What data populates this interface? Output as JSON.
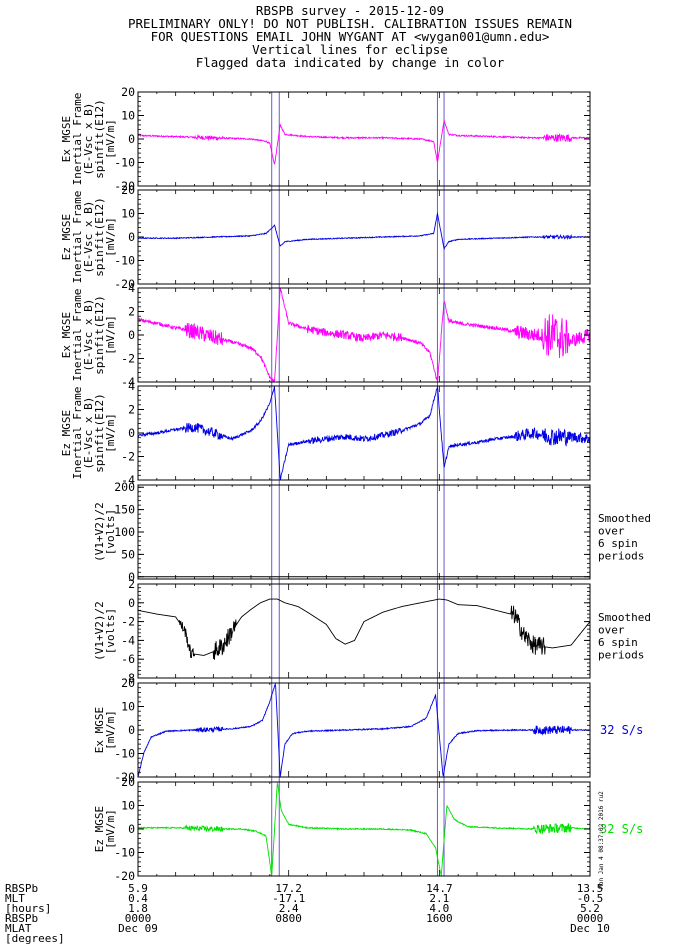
{
  "header": {
    "line1": "RBSPB survey - 2015-12-09",
    "line2": "PRELIMINARY ONLY! DO NOT PUBLISH. CALIBRATION ISSUES REMAIN",
    "line3": "FOR QUESTIONS EMAIL JOHN WYGANT AT <wygan001@umn.edu>",
    "line4": "Vertical lines for eclipse",
    "line5": "Flagged data indicated by change in color"
  },
  "side_stamp": "Mon Jan 4 08:37:02 2016 ru2",
  "colors": {
    "magenta": "#ff00ff",
    "blue": "#0000e6",
    "green": "#00e000",
    "black": "#000000",
    "eclipse": "#6a5acd"
  },
  "chart_data": {
    "type": "line",
    "x_unit": "hours UT",
    "xlim": [
      0,
      24
    ],
    "eclipse_intervals": [
      [
        7.1,
        7.5
      ],
      [
        15.9,
        16.25
      ]
    ],
    "panels": [
      {
        "ylabel": [
          "Ex MGSE",
          "Inertial Frame",
          "(E-Vsc x B)",
          "spinfit(E12)",
          "[mV/m]"
        ],
        "ylim": [
          -20,
          20
        ],
        "yticks": [
          "20",
          "10",
          "0",
          "-10",
          "-20"
        ],
        "ytick_values": [
          20,
          10,
          0,
          -10,
          -20
        ],
        "color": "magenta",
        "kind": "ex_wide",
        "series": [
          {
            "x": [
              0,
              2,
              4,
              6,
              6.8,
              7.0,
              7.25,
              7.55,
              7.8,
              9,
              11,
              13,
              15,
              15.7,
              15.9,
              16.25,
              16.5,
              17,
              19,
              21,
              22.5,
              24
            ],
            "y": [
              1.5,
              1,
              0.5,
              0,
              -1,
              -2,
              -11,
              6,
              2,
              1,
              0.5,
              0.5,
              0,
              -1,
              -10,
              8,
              2,
              1.5,
              1,
              0.5,
              0.5,
              0.5
            ]
          }
        ]
      },
      {
        "ylabel": [
          "Ez MGSE",
          "Inertial Frame",
          "(E-Vsc x B)",
          "spinfit(E12)",
          "[mV/m]"
        ],
        "ylim": [
          -20,
          20
        ],
        "yticks": [
          "20",
          "10",
          "0",
          "-10",
          "-20"
        ],
        "ytick_values": [
          20,
          10,
          0,
          -10,
          -20
        ],
        "color": "blue",
        "kind": "ez_wide",
        "series": [
          {
            "x": [
              0,
              2,
              4,
              6,
              6.8,
              7.0,
              7.25,
              7.55,
              7.8,
              9,
              11,
              13,
              15,
              15.7,
              15.9,
              16.25,
              16.5,
              17,
              19,
              21,
              22.5,
              24
            ],
            "y": [
              -0.5,
              -0.5,
              0,
              0.5,
              1.5,
              3,
              5,
              -4,
              -2,
              -1,
              -0.5,
              0,
              0.5,
              1.5,
              10,
              -5,
              -2,
              -1,
              -0.5,
              0,
              0,
              0
            ]
          }
        ]
      },
      {
        "ylabel": [
          "Ex MGSE",
          "Inertial Frame",
          "(E-Vsc x B)",
          "spinfit(E12)",
          "[mV/m]"
        ],
        "ylim": [
          -4,
          4
        ],
        "yticks": [
          "4",
          "2",
          "0",
          "-2",
          "-4"
        ],
        "ytick_values": [
          4,
          2,
          0,
          -2,
          -4
        ],
        "color": "magenta",
        "kind": "ex_zoom",
        "series": [
          {
            "x": [
              0,
              1,
              2,
              3,
              4,
              5,
              6,
              6.5,
              7.0,
              7.25,
              7.55,
              8,
              9,
              10,
              11,
              12,
              13,
              14,
              15,
              15.5,
              15.9,
              16.25,
              16.5,
              17,
              18,
              19,
              20,
              21,
              22,
              23,
              24
            ],
            "y": [
              1.3,
              1,
              0.6,
              0.3,
              -0.2,
              -0.6,
              -1.1,
              -1.8,
              -3.6,
              -4,
              4,
              1,
              0.5,
              0.2,
              0,
              -0.3,
              0,
              -0.2,
              -0.7,
              -1.5,
              -4,
              3,
              1.2,
              1,
              0.8,
              0.6,
              0.3,
              0,
              0,
              -0.5,
              0
            ]
          }
        ]
      },
      {
        "ylabel": [
          "Ez MGSE",
          "Inertial Frame",
          "(E-Vsc x B)",
          "spinfit(E12)",
          "[mV/m]"
        ],
        "ylim": [
          -4,
          4
        ],
        "yticks": [
          "4",
          "2",
          "0",
          "-2",
          "-4"
        ],
        "ytick_values": [
          4,
          2,
          0,
          -2,
          -4
        ],
        "color": "blue",
        "kind": "ez_zoom",
        "series": [
          {
            "x": [
              0,
              1,
              2,
              3,
              4,
              5,
              6,
              6.5,
              7.0,
              7.25,
              7.55,
              8,
              9,
              10,
              11,
              12,
              13,
              14,
              15,
              15.5,
              15.9,
              16.25,
              16.5,
              17,
              18,
              19,
              20,
              21,
              22,
              23,
              24
            ],
            "y": [
              -0.2,
              0,
              0.3,
              0.5,
              0,
              -0.5,
              0.2,
              1,
              2.5,
              4,
              -4,
              -1,
              -0.7,
              -0.5,
              -0.3,
              -0.5,
              -0.2,
              0.2,
              0.8,
              1.5,
              4,
              -3,
              -1.2,
              -1,
              -0.8,
              -0.5,
              -0.3,
              0,
              -0.3,
              -0.3,
              -0.5
            ]
          }
        ]
      },
      {
        "ylabel": [
          "(V1+V2)/2",
          "[volts]"
        ],
        "ylim": [
          -5,
          205
        ],
        "yticks": [
          "200",
          "150",
          "100",
          "50",
          "0"
        ],
        "ytick_values": [
          200,
          150,
          100,
          50,
          0
        ],
        "color": "black",
        "kind": "flat",
        "right_label": [
          "Smoothed",
          "over",
          "6 spin",
          "periods"
        ],
        "series": [
          {
            "x": [
              0,
              24
            ],
            "y": [
              0,
              0
            ]
          }
        ]
      },
      {
        "ylabel": [
          "(V1+V2)/2",
          "[volts]"
        ],
        "ylim": [
          -8,
          2
        ],
        "yticks": [
          "2",
          "0",
          "-2",
          "-4",
          "-6",
          "-8"
        ],
        "ytick_values": [
          2,
          0,
          -2,
          -4,
          -6,
          -8
        ],
        "color": "black",
        "kind": "potential",
        "right_label": [
          "Smoothed",
          "over",
          "6 spin",
          "periods"
        ],
        "series": [
          {
            "x": [
              0,
              1,
              2,
              2.5,
              2.8,
              3.5,
              4,
              4.5,
              5,
              5.5,
              6,
              6.5,
              7,
              7.4,
              7.8,
              8.5,
              9,
              10,
              10.5,
              11,
              11.5,
              12,
              12.5,
              13,
              14,
              15,
              15.5,
              16,
              16.4,
              17,
              18,
              19,
              20,
              20.5,
              21,
              22,
              23,
              24
            ],
            "y": [
              -0.8,
              -1.2,
              -1.5,
              -3,
              -5.4,
              -5.6,
              -5.2,
              -4.6,
              -3,
              -1.5,
              -0.7,
              0,
              0.4,
              0.4,
              0,
              -0.4,
              -1,
              -2.3,
              -3.8,
              -4.4,
              -4,
              -2,
              -1.5,
              -1,
              -0.4,
              0,
              0.2,
              0.4,
              0.3,
              -0.2,
              -0.3,
              -0.8,
              -1.3,
              -3.5,
              -4.5,
              -4.8,
              -4.5,
              -2
            ]
          }
        ]
      },
      {
        "ylabel": [
          "Ex MGSE",
          "[mV/m]"
        ],
        "ylim": [
          -20,
          20
        ],
        "yticks": [
          "20",
          "10",
          "0",
          "-10",
          "-20"
        ],
        "ytick_values": [
          20,
          10,
          0,
          -10,
          -20
        ],
        "color": "blue",
        "kind": "ex_ineff",
        "right_label": [
          "32 S/s"
        ],
        "series": [
          {
            "x": [
              0,
              0.3,
              0.7,
              1.5,
              3,
              5,
              6,
              6.6,
              7.0,
              7.3,
              7.55,
              7.8,
              8.2,
              9,
              11,
              13,
              14.5,
              15.3,
              15.8,
              16.2,
              16.5,
              17,
              18,
              20,
              22,
              24
            ],
            "y": [
              -20,
              -10,
              -3,
              -0.5,
              0,
              0.5,
              1.5,
              4,
              12,
              20,
              -20,
              -6,
              -1.5,
              -0.5,
              0,
              0.5,
              1.5,
              5,
              15,
              -20,
              -6,
              -1.5,
              -0.3,
              0,
              0,
              0
            ]
          }
        ]
      },
      {
        "ylabel": [
          "Ez MGSE",
          "[mV/m]"
        ],
        "ylim": [
          -20,
          20
        ],
        "yticks": [
          "20",
          "10",
          "0",
          "-10",
          "-20"
        ],
        "ytick_values": [
          20,
          10,
          0,
          -10,
          -20
        ],
        "color": "green",
        "kind": "ez_ineff",
        "right_label": [
          "32 S/s"
        ],
        "series": [
          {
            "x": [
              0,
              2,
              4,
              5.5,
              6.3,
              6.8,
              7.1,
              7.4,
              7.6,
              8,
              9,
              11,
              13,
              14.5,
              15.3,
              15.8,
              16.1,
              16.4,
              16.8,
              17.5,
              19,
              21,
              23,
              24
            ],
            "y": [
              0.5,
              0.5,
              0,
              0,
              -1,
              -3,
              -20,
              20,
              8,
              2,
              0.5,
              0,
              0,
              -0.5,
              -2,
              -8,
              -20,
              10,
              4,
              1,
              0.5,
              0,
              0.5,
              0
            ]
          }
        ]
      }
    ],
    "xaxis": {
      "row_labels": [
        "RBSPb",
        "MLT",
        "[hours]",
        "RBSPb",
        "MLAT",
        "[degrees]"
      ],
      "ticks": [
        {
          "x": 0,
          "values": [
            "5.9",
            "0.4",
            "1.8",
            "0000",
            "Dec 09"
          ]
        },
        {
          "x": 8,
          "values": [
            "17.2",
            "-17.1",
            "2.4",
            "0800",
            ""
          ]
        },
        {
          "x": 16,
          "values": [
            "14.7",
            "2.1",
            "4.0",
            "1600",
            ""
          ]
        },
        {
          "x": 24,
          "values": [
            "13.5",
            "-0.5",
            "5.2",
            "0000",
            "Dec 10"
          ]
        }
      ]
    }
  }
}
